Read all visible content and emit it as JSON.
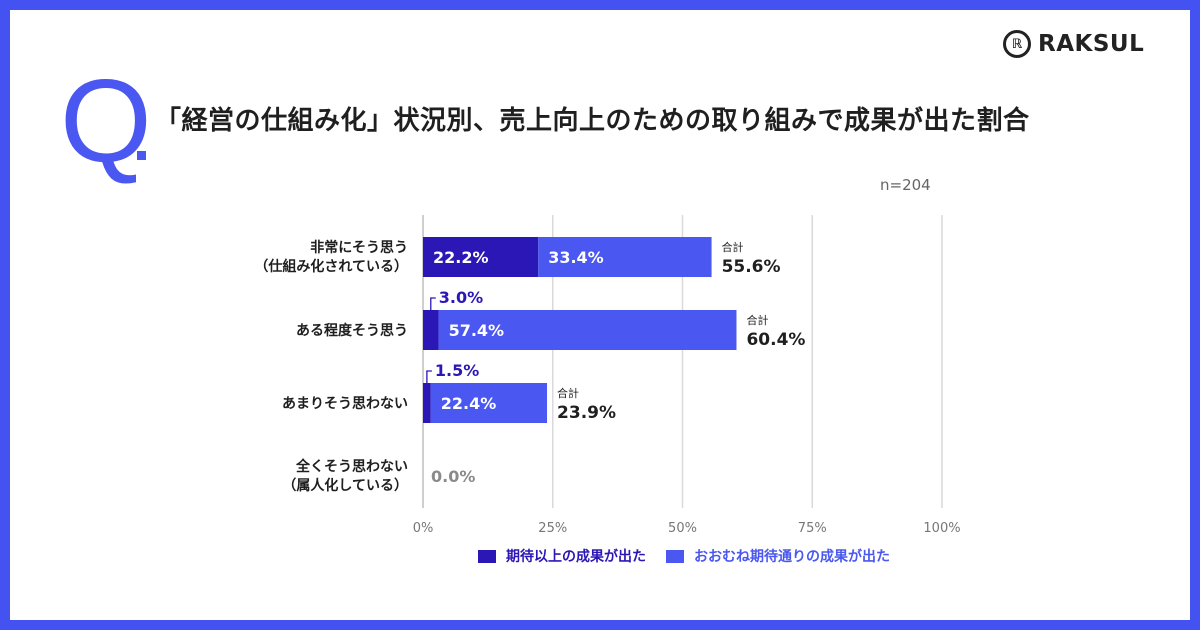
{
  "header": {
    "q_letter": "Q",
    "question": "「経営の仕組み化」状況別、売上向上のための取り組みで成果が出た割合",
    "brand": "RAKSUL",
    "brand_mark": "ℝ",
    "sample_size": "n=204"
  },
  "colors": {
    "background_frame": "#4452f1",
    "series_exceeded": "#2a17b5",
    "series_met": "#4a57f0",
    "gridline": "#d9d9d9"
  },
  "chart_data": {
    "type": "bar",
    "orientation": "horizontal",
    "stacked": true,
    "categories": [
      [
        "非常にそう思う",
        "（仕組み化されている）"
      ],
      [
        "ある程度そう思う"
      ],
      [
        "あまりそう思わない"
      ],
      [
        "全くそう思わない",
        "（属人化している）"
      ]
    ],
    "series": [
      {
        "name": "期待以上の成果が出た",
        "values": [
          22.2,
          3.0,
          1.5,
          0.0
        ]
      },
      {
        "name": "おおむね期待通りの成果が出た",
        "values": [
          33.4,
          57.4,
          22.4,
          0.0
        ]
      }
    ],
    "totals": [
      55.6,
      60.4,
      23.9,
      0.0
    ],
    "total_label": "合計",
    "x_ticks": [
      "0%",
      "25%",
      "50%",
      "75%",
      "100%"
    ],
    "xlim": [
      0,
      100
    ],
    "grid": true,
    "legend_position": "bottom",
    "value_suffix": "%"
  }
}
